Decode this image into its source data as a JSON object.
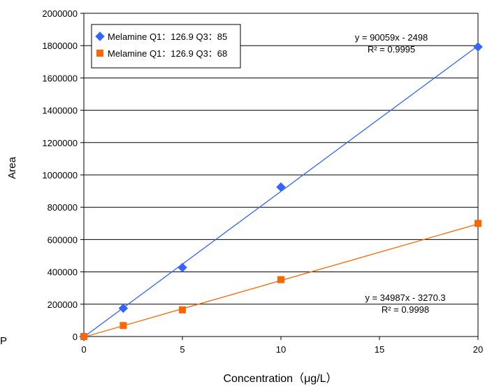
{
  "chart_data": {
    "type": "scatter",
    "title": "",
    "xlabel": "Concentration（μg/L）",
    "ylabel": "Area",
    "xlim": [
      0,
      20
    ],
    "ylim": [
      0,
      2000000
    ],
    "x_ticks": [
      "0",
      "5",
      "10",
      "15",
      "20"
    ],
    "y_ticks": [
      "0",
      "200000",
      "400000",
      "600000",
      "800000",
      "1000000",
      "1200000",
      "1400000",
      "1600000",
      "1800000",
      "2000000"
    ],
    "grid": "horizontal",
    "legend_position": "top-left",
    "series": [
      {
        "name": "Melamine Q1：126.9 Q3：85",
        "color": "#3366FF",
        "marker": "diamond",
        "x": [
          0,
          2,
          5,
          10,
          20
        ],
        "y": [
          0,
          175000,
          427000,
          925000,
          1792000
        ],
        "trendline": {
          "slope": 90059,
          "intercept": -2498
        },
        "equation": "y = 90059x - 2498",
        "r2": "R² = 0.9995"
      },
      {
        "name": "Melamine Q1：126.9 Q3：68",
        "color": "#FF6600",
        "marker": "square",
        "x": [
          0,
          2,
          5,
          10,
          20
        ],
        "y": [
          0,
          68000,
          165000,
          352000,
          700000
        ],
        "trendline": {
          "slope": 34987,
          "intercept": -3270.3
        },
        "equation": "y = 34987x - 3270.3",
        "r2": "R² = 0.9998"
      }
    ],
    "stray_mark": "P"
  }
}
